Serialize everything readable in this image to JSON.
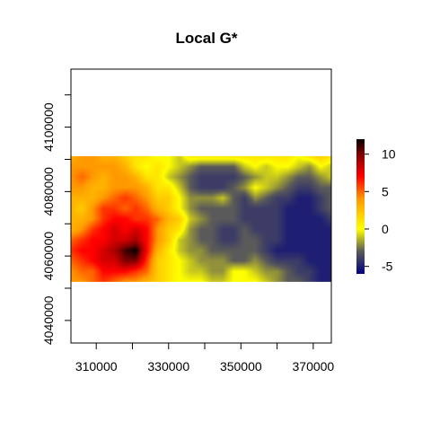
{
  "chart_data": {
    "type": "heatmap",
    "title": "Local G*",
    "xlabel": "",
    "ylabel": "",
    "xlim": [
      303000,
      375000
    ],
    "ylim": [
      4033000,
      4118000
    ],
    "data_extent": {
      "xmin": 303000,
      "xmax": 375000,
      "ymin": 4052000,
      "ymax": 4091000
    },
    "x_ticks": [
      310000,
      320000,
      330000,
      340000,
      350000,
      360000,
      370000
    ],
    "x_tick_labels": [
      "310000",
      "",
      "330000",
      "",
      "350000",
      "",
      "370000"
    ],
    "y_ticks": [
      4040000,
      4050000,
      4060000,
      4070000,
      4080000,
      4090000,
      4100000,
      4110000
    ],
    "y_tick_labels": [
      "4040000",
      "",
      "4060000",
      "",
      "4080000",
      "",
      "4100000",
      ""
    ],
    "colorbar": {
      "range": [
        -6,
        12
      ],
      "ticks": [
        -5,
        0,
        5,
        10
      ],
      "tick_labels": [
        "-5",
        "0",
        "5",
        "10"
      ],
      "stops": [
        {
          "value": -6,
          "color": "#000080"
        },
        {
          "value": -3,
          "color": "#5a5a5a"
        },
        {
          "value": 0,
          "color": "#ffff00"
        },
        {
          "value": 4,
          "color": "#ff9900"
        },
        {
          "value": 7,
          "color": "#ff0000"
        },
        {
          "value": 10,
          "color": "#800000"
        },
        {
          "value": 12,
          "color": "#000000"
        }
      ]
    },
    "grid": false,
    "legend": "right",
    "field_rows_north_to_south": [
      [
        3,
        4,
        4,
        3,
        3,
        2,
        1,
        1,
        0,
        0,
        -1,
        1,
        1,
        1,
        1,
        1,
        1,
        1,
        1,
        1,
        1,
        0,
        1,
        2,
        1
      ],
      [
        4,
        4,
        4,
        4,
        4,
        3,
        1,
        0,
        1,
        0,
        -1,
        -2,
        -3,
        -3,
        -3,
        -3,
        -1,
        0,
        -1,
        0,
        0,
        -1,
        -2,
        0,
        -1
      ],
      [
        4,
        5,
        4,
        3,
        4,
        4,
        3,
        1,
        1,
        -1,
        -2,
        -3,
        -4,
        -4,
        -4,
        -4,
        -3,
        -2,
        -1,
        -1,
        -2,
        -3,
        -3,
        -2,
        -1
      ],
      [
        4,
        4,
        3,
        3,
        4,
        4,
        4,
        3,
        1,
        1,
        -1,
        -3,
        -4,
        -4,
        -4,
        -3,
        -2,
        0,
        -1,
        -2,
        -3,
        -4,
        -4,
        -3,
        -3
      ],
      [
        3,
        3,
        3,
        4,
        5,
        6,
        5,
        4,
        2,
        2,
        0,
        -2,
        -2,
        -2,
        -1,
        -3,
        -4,
        -2,
        -3,
        -4,
        -4,
        -5,
        -5,
        -4,
        -3
      ],
      [
        3,
        2,
        4,
        6,
        6,
        5,
        6,
        5,
        3,
        2,
        0,
        -2,
        -3,
        -3,
        -3,
        -3,
        -4,
        -4,
        -4,
        -4,
        -5,
        -5,
        -5,
        -4,
        -3
      ],
      [
        3,
        3,
        4,
        6,
        7,
        7,
        6,
        6,
        5,
        3,
        2,
        -1,
        -2,
        -3,
        -3,
        -3,
        -4,
        -4,
        -4,
        -4,
        -5,
        -5,
        -5,
        -5,
        -4
      ],
      [
        3,
        4,
        6,
        7,
        8,
        7,
        8,
        7,
        4,
        2,
        1,
        -2,
        -3,
        -3,
        -4,
        -4,
        -3,
        -4,
        -4,
        -4,
        -5,
        -5,
        -5,
        -5,
        -5
      ],
      [
        5,
        6,
        7,
        7,
        8,
        8,
        9,
        7,
        4,
        2,
        -1,
        -2,
        -3,
        -3,
        -4,
        -4,
        -3,
        -3,
        -4,
        -4,
        -5,
        -5,
        -5,
        -5,
        -5
      ],
      [
        6,
        7,
        7,
        8,
        9,
        11,
        12,
        7,
        3,
        1,
        -1,
        -2,
        -2,
        -3,
        -3,
        -3,
        -3,
        -3,
        -4,
        -5,
        -5,
        -5,
        -5,
        -5,
        -5
      ],
      [
        5,
        6,
        7,
        8,
        8,
        10,
        10,
        6,
        2,
        1,
        0,
        -1,
        -2,
        -2,
        -2,
        -3,
        -3,
        -2,
        -3,
        -4,
        -4,
        -4,
        -5,
        -5,
        -5
      ],
      [
        4,
        5,
        5,
        7,
        7,
        7,
        6,
        5,
        2,
        1,
        0,
        -1,
        -1,
        -2,
        -2,
        0,
        0,
        -1,
        -2,
        -2,
        -3,
        -4,
        -4,
        -5,
        -5
      ],
      [
        4,
        4,
        5,
        6,
        5,
        4,
        4,
        3,
        2,
        1,
        0,
        0,
        0,
        -1,
        -1,
        0,
        0,
        0,
        -1,
        -2,
        -3,
        -3,
        -4,
        -5,
        -5
      ]
    ]
  }
}
